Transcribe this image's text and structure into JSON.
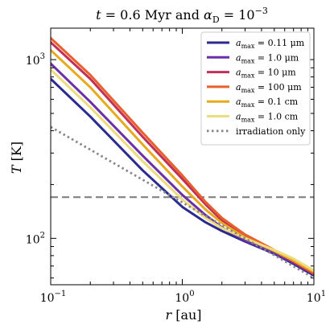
{
  "chart_data": {
    "type": "line",
    "title": "t = 0.6 Myr and α_D = 10^-3",
    "title_parts": {
      "t_symbol": "t",
      "t_rest": " = 0.6 Myr and ",
      "alpha_symbol": "α",
      "alpha_sub": "D",
      "alpha_rest": " = 10",
      "alpha_exp": "−3"
    },
    "xlabel": "r [au]",
    "xlabel_parts": {
      "symbol": "r",
      "rest": " [au]"
    },
    "ylabel": "T [K]",
    "ylabel_parts": {
      "symbol": "T",
      "rest": " [K]"
    },
    "x_scale": "log",
    "y_scale": "log",
    "xlim": [
      0.1,
      10
    ],
    "ylim": [
      55,
      1500
    ],
    "x_ticks": [
      {
        "value": 0.1,
        "base": "10",
        "exp": "−1"
      },
      {
        "value": 1,
        "base": "10",
        "exp": "0"
      },
      {
        "value": 10,
        "base": "10",
        "exp": "1"
      }
    ],
    "y_ticks": [
      {
        "value": 100,
        "base": "10",
        "exp": "2"
      },
      {
        "value": 1000,
        "base": "10",
        "exp": "3"
      }
    ],
    "legend_position": "top-right",
    "series": [
      {
        "name": "a_max = 0.11 μm",
        "label_size": "0.11 μm",
        "color": "#2b2a8f",
        "style": "solid",
        "x": [
          0.1,
          0.2,
          0.5,
          1,
          1.5,
          2,
          3,
          5,
          7,
          10
        ],
        "y": [
          780,
          480,
          240,
          150,
          123,
          110,
          96,
          82,
          72,
          62
        ]
      },
      {
        "name": "a_max = 1.0 μm",
        "label_size": "1.0 μm",
        "color": "#6b2fa8",
        "style": "solid",
        "x": [
          0.1,
          0.2,
          0.5,
          1,
          1.5,
          2,
          3,
          5,
          7,
          10
        ],
        "y": [
          950,
          580,
          290,
          175,
          135,
          115,
          97,
          83,
          73,
          63
        ]
      },
      {
        "name": "a_max = 10 μm",
        "label_size": "10 μm",
        "color": "#c0305a",
        "style": "solid",
        "x": [
          0.1,
          0.2,
          0.5,
          1,
          1.5,
          2,
          3,
          5,
          7,
          10
        ],
        "y": [
          1250,
          780,
          370,
          215,
          155,
          126,
          103,
          85,
          74,
          63
        ]
      },
      {
        "name": "a_max = 100 μm",
        "label_size": "100 μm",
        "color": "#e8602c",
        "style": "solid",
        "x": [
          0.1,
          0.2,
          0.5,
          1,
          1.5,
          2,
          3,
          5,
          7,
          10
        ],
        "y": [
          1320,
          820,
          390,
          225,
          160,
          130,
          105,
          86,
          75,
          64
        ]
      },
      {
        "name": "a_max = 0.1 cm",
        "label_size": "0.1 cm",
        "color": "#e8aa1c",
        "style": "solid",
        "x": [
          0.1,
          0.2,
          0.5,
          1,
          1.5,
          2,
          3,
          5,
          7,
          10
        ],
        "y": [
          1130,
          700,
          335,
          195,
          145,
          122,
          101,
          85,
          75,
          65
        ]
      },
      {
        "name": "a_max = 1.0 cm",
        "label_size": "1.0 cm",
        "color": "#ecdc7e",
        "style": "solid",
        "x": [
          0.1,
          0.2,
          0.5,
          1,
          1.5,
          2,
          3,
          5,
          7,
          10
        ],
        "y": [
          880,
          540,
          270,
          165,
          130,
          114,
          100,
          86,
          77,
          66
        ]
      },
      {
        "name": "irradiation only",
        "label_size": "",
        "color": "#888888",
        "style": "dotted",
        "x": [
          0.1,
          10
        ],
        "y": [
          420,
          60
        ]
      }
    ],
    "reference_lines": [
      {
        "orientation": "horizontal",
        "y": 170,
        "color": "#888888",
        "style": "dashed"
      }
    ]
  }
}
